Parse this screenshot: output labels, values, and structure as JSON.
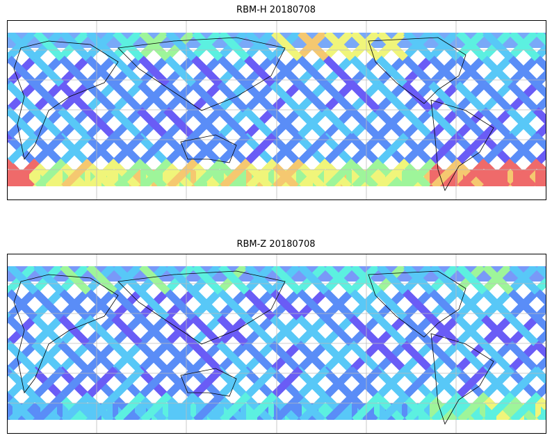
{
  "panels": [
    {
      "title": "RBM-H 20180708",
      "hot_band": "strong"
    },
    {
      "title": "RBM-Z 20180708",
      "hot_band": "weak"
    }
  ],
  "colormap": [
    "#6a5cf6",
    "#5a8df7",
    "#58c8f7",
    "#5cf0e0",
    "#9ef59a",
    "#f0f57a",
    "#f5c870",
    "#ef6a6a"
  ]
}
